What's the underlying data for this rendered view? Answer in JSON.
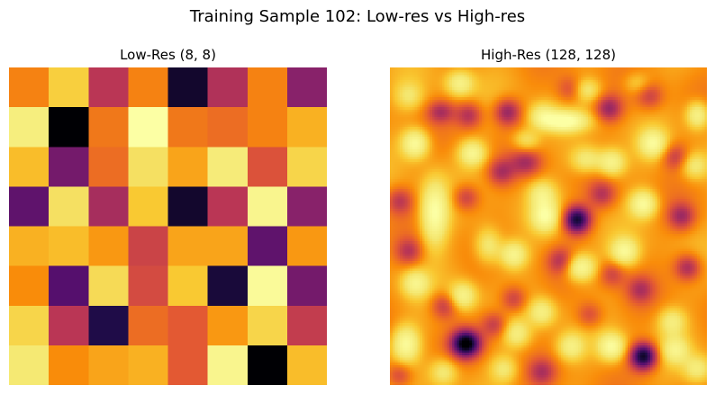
{
  "figure": {
    "suptitle": "Training Sample 102: Low-res vs High-res"
  },
  "chart_data": [
    {
      "type": "heatmap",
      "title": "Low-Res (8, 8)",
      "colormap": "inferno",
      "axis": "off",
      "shape": [
        8,
        8
      ],
      "values": [
        [
          0.58,
          0.72,
          0.4,
          0.58,
          0.06,
          0.38,
          0.58,
          0.3
        ],
        [
          0.86,
          0.0,
          0.56,
          1.0,
          0.56,
          0.54,
          0.58,
          0.66
        ],
        [
          0.68,
          0.26,
          0.54,
          0.78,
          0.64,
          0.84,
          0.48,
          0.74
        ],
        [
          0.22,
          0.78,
          0.36,
          0.7,
          0.06,
          0.4,
          0.92,
          0.3
        ],
        [
          0.66,
          0.68,
          0.62,
          0.44,
          0.64,
          0.64,
          0.22,
          0.62
        ],
        [
          0.6,
          0.2,
          0.76,
          0.46,
          0.7,
          0.08,
          0.96,
          0.26
        ],
        [
          0.74,
          0.4,
          0.1,
          0.54,
          0.5,
          0.62,
          0.74,
          0.42
        ],
        [
          0.82,
          0.6,
          0.64,
          0.66,
          0.5,
          0.92,
          0.0,
          0.68
        ]
      ]
    },
    {
      "type": "heatmap",
      "title": "High-Res (128, 128)",
      "colormap": "inferno",
      "axis": "off",
      "shape": [
        128,
        128
      ],
      "base_value": 0.62,
      "features": [
        {
          "x": 0.22,
          "y": 0.05,
          "amp": 0.26,
          "sx": 0.03,
          "sy": 0.028
        },
        {
          "x": 0.06,
          "y": 0.09,
          "amp": 0.16,
          "sx": 0.03,
          "sy": 0.03
        },
        {
          "x": 0.62,
          "y": 0.07,
          "amp": 0.2,
          "sx": 0.03,
          "sy": 0.025
        },
        {
          "x": 0.78,
          "y": 0.05,
          "amp": 0.14,
          "sx": 0.03,
          "sy": 0.025
        },
        {
          "x": 0.48,
          "y": 0.15,
          "amp": 0.22,
          "sx": 0.03,
          "sy": 0.028
        },
        {
          "x": 0.55,
          "y": 0.17,
          "amp": 0.38,
          "sx": 0.05,
          "sy": 0.022
        },
        {
          "x": 0.97,
          "y": 0.15,
          "amp": 0.3,
          "sx": 0.025,
          "sy": 0.03
        },
        {
          "x": 0.16,
          "y": 0.14,
          "amp": -0.22,
          "sx": 0.03,
          "sy": 0.025
        },
        {
          "x": 0.25,
          "y": 0.15,
          "amp": -0.24,
          "sx": 0.03,
          "sy": 0.03
        },
        {
          "x": 0.37,
          "y": 0.14,
          "amp": -0.3,
          "sx": 0.03,
          "sy": 0.03
        },
        {
          "x": 0.57,
          "y": 0.07,
          "amp": -0.18,
          "sx": 0.03,
          "sy": 0.03
        },
        {
          "x": 0.69,
          "y": 0.13,
          "amp": -0.28,
          "sx": 0.03,
          "sy": 0.03
        },
        {
          "x": 0.82,
          "y": 0.09,
          "amp": -0.18,
          "sx": 0.03,
          "sy": 0.03
        },
        {
          "x": 0.08,
          "y": 0.24,
          "amp": 0.36,
          "sx": 0.03,
          "sy": 0.032
        },
        {
          "x": 0.26,
          "y": 0.27,
          "amp": 0.3,
          "sx": 0.03,
          "sy": 0.028
        },
        {
          "x": 0.43,
          "y": 0.3,
          "amp": -0.22,
          "sx": 0.035,
          "sy": 0.03
        },
        {
          "x": 0.43,
          "y": 0.23,
          "amp": 0.2,
          "sx": 0.03,
          "sy": 0.025
        },
        {
          "x": 0.62,
          "y": 0.29,
          "amp": 0.24,
          "sx": 0.035,
          "sy": 0.03
        },
        {
          "x": 0.7,
          "y": 0.3,
          "amp": 0.3,
          "sx": 0.03,
          "sy": 0.03
        },
        {
          "x": 0.83,
          "y": 0.24,
          "amp": 0.3,
          "sx": 0.03,
          "sy": 0.03
        },
        {
          "x": 0.96,
          "y": 0.31,
          "amp": 0.22,
          "sx": 0.03,
          "sy": 0.03
        },
        {
          "x": 0.35,
          "y": 0.33,
          "amp": -0.22,
          "sx": 0.03,
          "sy": 0.03
        },
        {
          "x": 0.9,
          "y": 0.28,
          "amp": -0.2,
          "sx": 0.03,
          "sy": 0.03
        },
        {
          "x": 0.03,
          "y": 0.42,
          "amp": -0.2,
          "sx": 0.03,
          "sy": 0.03
        },
        {
          "x": 0.14,
          "y": 0.46,
          "amp": 0.38,
          "sx": 0.03,
          "sy": 0.07
        },
        {
          "x": 0.24,
          "y": 0.41,
          "amp": -0.22,
          "sx": 0.03,
          "sy": 0.03
        },
        {
          "x": 0.48,
          "y": 0.4,
          "amp": 0.22,
          "sx": 0.03,
          "sy": 0.03
        },
        {
          "x": 0.49,
          "y": 0.47,
          "amp": 0.32,
          "sx": 0.03,
          "sy": 0.032
        },
        {
          "x": 0.59,
          "y": 0.48,
          "amp": -0.55,
          "sx": 0.03,
          "sy": 0.03
        },
        {
          "x": 0.67,
          "y": 0.4,
          "amp": -0.2,
          "sx": 0.03,
          "sy": 0.03
        },
        {
          "x": 0.8,
          "y": 0.43,
          "amp": 0.34,
          "sx": 0.03,
          "sy": 0.03
        },
        {
          "x": 0.92,
          "y": 0.47,
          "amp": -0.25,
          "sx": 0.03,
          "sy": 0.03
        },
        {
          "x": 0.06,
          "y": 0.58,
          "amp": -0.2,
          "sx": 0.03,
          "sy": 0.03
        },
        {
          "x": 0.31,
          "y": 0.56,
          "amp": 0.24,
          "sx": 0.03,
          "sy": 0.04
        },
        {
          "x": 0.39,
          "y": 0.59,
          "amp": 0.3,
          "sx": 0.03,
          "sy": 0.03
        },
        {
          "x": 0.54,
          "y": 0.61,
          "amp": -0.22,
          "sx": 0.03,
          "sy": 0.03
        },
        {
          "x": 0.6,
          "y": 0.63,
          "amp": 0.36,
          "sx": 0.035,
          "sy": 0.03
        },
        {
          "x": 0.74,
          "y": 0.58,
          "amp": 0.3,
          "sx": 0.03,
          "sy": 0.03
        },
        {
          "x": 0.94,
          "y": 0.63,
          "amp": -0.28,
          "sx": 0.03,
          "sy": 0.03
        },
        {
          "x": 0.7,
          "y": 0.65,
          "amp": -0.18,
          "sx": 0.03,
          "sy": 0.03
        },
        {
          "x": 0.08,
          "y": 0.68,
          "amp": 0.26,
          "sx": 0.03,
          "sy": 0.03
        },
        {
          "x": 0.23,
          "y": 0.72,
          "amp": 0.28,
          "sx": 0.03,
          "sy": 0.03
        },
        {
          "x": 0.17,
          "y": 0.75,
          "amp": -0.22,
          "sx": 0.03,
          "sy": 0.03
        },
        {
          "x": 0.39,
          "y": 0.73,
          "amp": -0.22,
          "sx": 0.03,
          "sy": 0.03
        },
        {
          "x": 0.48,
          "y": 0.77,
          "amp": 0.24,
          "sx": 0.03,
          "sy": 0.03
        },
        {
          "x": 0.63,
          "y": 0.78,
          "amp": -0.18,
          "sx": 0.03,
          "sy": 0.03
        },
        {
          "x": 0.79,
          "y": 0.7,
          "amp": -0.2,
          "sx": 0.03,
          "sy": 0.03
        },
        {
          "x": 0.89,
          "y": 0.8,
          "amp": 0.22,
          "sx": 0.03,
          "sy": 0.03
        },
        {
          "x": 0.05,
          "y": 0.87,
          "amp": 0.34,
          "sx": 0.03,
          "sy": 0.04
        },
        {
          "x": 0.24,
          "y": 0.87,
          "amp": -0.62,
          "sx": 0.032,
          "sy": 0.03
        },
        {
          "x": 0.33,
          "y": 0.81,
          "amp": -0.22,
          "sx": 0.03,
          "sy": 0.03
        },
        {
          "x": 0.4,
          "y": 0.84,
          "amp": 0.22,
          "sx": 0.03,
          "sy": 0.03
        },
        {
          "x": 0.57,
          "y": 0.88,
          "amp": 0.24,
          "sx": 0.03,
          "sy": 0.03
        },
        {
          "x": 0.7,
          "y": 0.88,
          "amp": 0.34,
          "sx": 0.03,
          "sy": 0.03
        },
        {
          "x": 0.8,
          "y": 0.91,
          "amp": -0.58,
          "sx": 0.03,
          "sy": 0.03
        },
        {
          "x": 0.9,
          "y": 0.89,
          "amp": 0.24,
          "sx": 0.03,
          "sy": 0.03
        },
        {
          "x": 0.03,
          "y": 0.97,
          "amp": -0.2,
          "sx": 0.03,
          "sy": 0.03
        },
        {
          "x": 0.17,
          "y": 0.96,
          "amp": 0.22,
          "sx": 0.03,
          "sy": 0.03
        },
        {
          "x": 0.36,
          "y": 0.95,
          "amp": 0.2,
          "sx": 0.03,
          "sy": 0.03
        },
        {
          "x": 0.48,
          "y": 0.96,
          "amp": -0.2,
          "sx": 0.03,
          "sy": 0.03
        },
        {
          "x": 0.97,
          "y": 0.95,
          "amp": 0.22,
          "sx": 0.03,
          "sy": 0.03
        }
      ]
    }
  ]
}
